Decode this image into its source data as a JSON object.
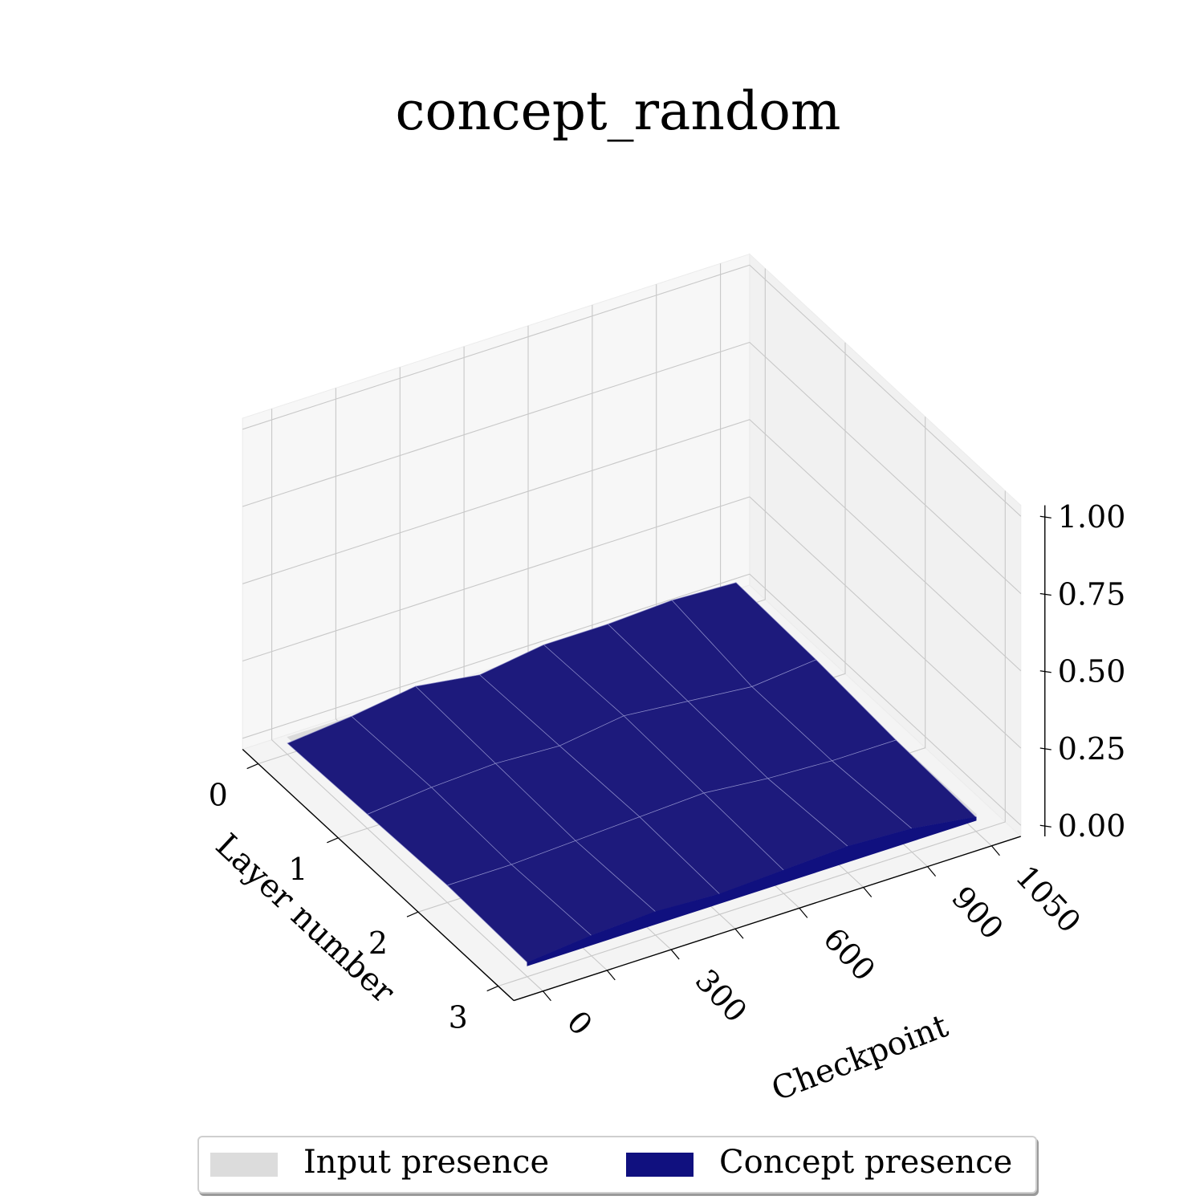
{
  "chart_data": {
    "type": "surface3d",
    "title": "concept_random",
    "xlabel": "Layer number",
    "ylabel": "Checkpoint",
    "zlabel": "",
    "layers": [
      0,
      1,
      2,
      3
    ],
    "checkpoints": [
      0,
      150,
      300,
      450,
      600,
      750,
      900,
      1050
    ],
    "x_ticks": [
      "0",
      "1",
      "2",
      "3"
    ],
    "y_ticks": [
      "0",
      "300",
      "600",
      "900",
      "1050"
    ],
    "z_ticks": [
      "0.00",
      "0.25",
      "0.50",
      "0.75",
      "1.00"
    ],
    "zlim": [
      0,
      1
    ],
    "series": [
      {
        "name": "Input presence",
        "color": "#dcdcdc",
        "values": [
          [
            0.02,
            0.02,
            0.02,
            0.02,
            0.02,
            0.02,
            0.02,
            0.02
          ],
          [
            0.02,
            0.02,
            0.02,
            0.02,
            0.02,
            0.02,
            0.02,
            0.02
          ],
          [
            0.02,
            0.02,
            0.02,
            0.02,
            0.02,
            0.02,
            0.02,
            0.02
          ],
          [
            0.02,
            0.02,
            0.02,
            0.02,
            0.02,
            0.02,
            0.02,
            0.02
          ]
        ]
      },
      {
        "name": "Concept presence",
        "color": "#10107f",
        "values": [
          [
            0.0,
            0.02,
            0.05,
            0.02,
            0.05,
            0.05,
            0.06,
            0.05
          ],
          [
            0.01,
            0.03,
            0.04,
            0.03,
            0.06,
            0.04,
            0.02,
            0.04
          ],
          [
            0.02,
            0.02,
            0.03,
            0.04,
            0.05,
            0.03,
            0.02,
            0.02
          ],
          [
            0.01,
            0.03,
            0.04,
            0.03,
            0.04,
            0.05,
            0.04,
            0.01
          ]
        ]
      }
    ]
  },
  "legend": {
    "items": [
      {
        "label": "Input presence",
        "color": "#dcdcdc"
      },
      {
        "label": "Concept presence",
        "color": "#10107f"
      }
    ]
  }
}
